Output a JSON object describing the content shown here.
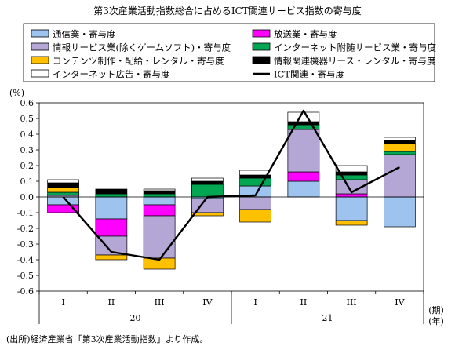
{
  "chart_data": {
    "type": "bar",
    "title": "第3次産業活動指数総合に占めるICT関連サービス指数の寄与度",
    "ylabel": "(%)",
    "xlabel_unit_1": "(期)",
    "xlabel_unit_2": "(年)",
    "ylim": [
      -0.6,
      0.6
    ],
    "yticks": [
      "0.6",
      "0.5",
      "0.4",
      "0.3",
      "0.2",
      "0.1",
      "0.0",
      "-0.1",
      "-0.2",
      "-0.3",
      "-0.4",
      "-0.5",
      "-0.6"
    ],
    "categories": [
      "I",
      "II",
      "III",
      "IV",
      "I",
      "II",
      "III",
      "IV"
    ],
    "year_labels": [
      {
        "label": "20",
        "span": [
          0,
          3
        ]
      },
      {
        "label": "21",
        "span": [
          4,
          7
        ]
      }
    ],
    "stacked": true,
    "grid": false,
    "legend_position": "top",
    "series": [
      {
        "name": "通信業・寄与度",
        "color": "#9dc3ee",
        "values": [
          -0.05,
          -0.14,
          -0.05,
          -0.01,
          0.07,
          0.1,
          -0.15,
          -0.19
        ]
      },
      {
        "name": "放送業・寄与度",
        "color": "#ff00ff",
        "values": [
          -0.05,
          -0.11,
          -0.07,
          0.0,
          0.0,
          0.06,
          0.02,
          0.0
        ]
      },
      {
        "name": "情報サービス業(除くゲームソフト)・寄与度",
        "color": "#b4a7d6",
        "values": [
          0.01,
          -0.12,
          -0.27,
          -0.09,
          -0.08,
          0.27,
          0.09,
          0.27
        ]
      },
      {
        "name": "インターネット附随サービス業・寄与度",
        "color": "#00a651",
        "values": [
          0.02,
          0.02,
          0.02,
          0.08,
          0.05,
          0.03,
          0.03,
          0.02
        ]
      },
      {
        "name": "コンテンツ制作・配給・レンタル・寄与度",
        "color": "#ffc000",
        "values": [
          0.03,
          -0.03,
          -0.07,
          -0.02,
          -0.08,
          0.0,
          -0.03,
          0.05
        ]
      },
      {
        "name": "情報関連機器リース・レンタル・寄与度",
        "color": "#000000",
        "values": [
          0.03,
          0.03,
          0.02,
          0.02,
          0.02,
          0.02,
          0.02,
          0.02
        ]
      },
      {
        "name": "インターネット広告・寄与度",
        "color": "#ffffff",
        "values": [
          0.02,
          0.0,
          0.01,
          0.02,
          0.03,
          0.06,
          0.04,
          0.02
        ]
      }
    ],
    "line_series": {
      "name": "ICT関連・寄与度",
      "color": "#000000",
      "values": [
        0.0,
        -0.35,
        -0.4,
        0.0,
        0.01,
        0.55,
        0.03,
        0.19
      ]
    }
  },
  "legend": {
    "items": [
      {
        "label": "通信業・寄与度",
        "color": "#9dc3ee",
        "kind": "box"
      },
      {
        "label": "放送業・寄与度",
        "color": "#ff00ff",
        "kind": "box"
      },
      {
        "label": "情報サービス業(除くゲームソフト)・寄与度",
        "color": "#b4a7d6",
        "kind": "box"
      },
      {
        "label": "インターネット附随サービス業・寄与度",
        "color": "#00a651",
        "kind": "box"
      },
      {
        "label": "コンテンツ制作・配給・レンタル・寄与度",
        "color": "#ffc000",
        "kind": "box"
      },
      {
        "label": "情報関連機器リース・レンタル・寄与度",
        "color": "#000000",
        "kind": "box"
      },
      {
        "label": "インターネット広告・寄与度",
        "color": "#ffffff",
        "kind": "box"
      },
      {
        "label": "ICT関連・寄与度",
        "color": "#000000",
        "kind": "line"
      }
    ]
  },
  "source_note": "(出所)経済産業省「第3次産業活動指数」より作成。"
}
